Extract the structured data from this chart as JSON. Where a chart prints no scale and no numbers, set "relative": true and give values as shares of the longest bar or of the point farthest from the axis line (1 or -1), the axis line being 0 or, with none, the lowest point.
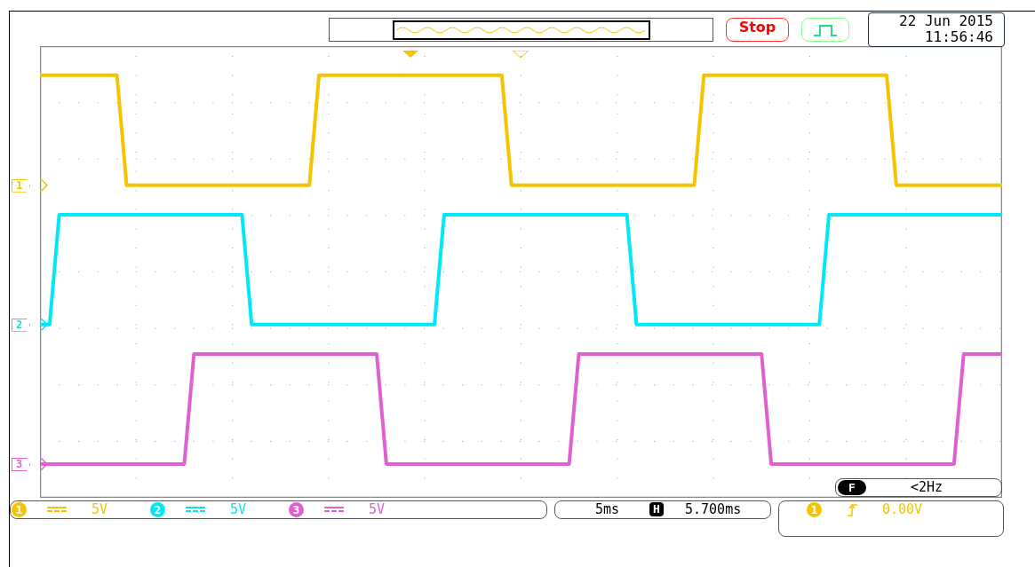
{
  "chart_data": {
    "type": "line",
    "relative": true,
    "grid": true,
    "legend": "bottom",
    "marker": "none",
    "line_style": "solid",
    "categories": [
      null,
      null,
      null,
      null,
      null,
      null,
      null,
      null,
      null,
      null,
      null,
      null,
      null,
      null,
      null,
      null,
      null,
      null,
      null,
      null,
      null,
      null,
      null,
      null,
      null,
      null,
      null,
      null,
      null,
      null,
      null,
      null,
      null,
      null,
      null,
      null,
      null,
      null,
      null,
      null,
      null,
      null,
      null,
      null,
      null,
      null,
      null,
      null,
      null,
      null,
      null,
      null,
      null,
      null,
      null,
      null,
      null,
      null,
      null,
      null,
      null,
      null,
      null,
      null,
      null,
      null,
      null,
      null,
      null,
      null,
      null,
      null,
      null,
      null,
      null,
      null,
      null,
      null,
      null,
      null,
      null,
      null,
      null,
      null,
      null,
      null,
      null,
      null,
      null,
      null,
      null,
      null,
      null,
      null,
      null,
      null,
      null,
      null,
      null,
      null,
      null
    ],
    "series": [
      {
        "name": "1",
        "color": "#f5c400",
        "values": [
          1,
          1,
          1,
          1,
          1,
          1,
          1,
          1,
          1,
          0.74,
          0.74,
          0.74,
          0.74,
          0.74,
          0.74,
          0.74,
          0.74,
          0.74,
          0.74,
          0.74,
          0.74,
          0.74,
          0.74,
          0.74,
          0.74,
          0.74,
          0.74,
          0.74,
          0.74,
          1,
          1,
          1,
          1,
          1,
          1,
          1,
          1,
          1,
          1,
          1,
          1,
          1,
          1,
          1,
          1,
          1,
          1,
          1,
          1,
          0.74,
          0.74,
          0.74,
          0.74,
          0.74,
          0.74,
          0.74,
          0.74,
          0.74,
          0.74,
          0.74,
          0.74,
          0.74,
          0.74,
          0.74,
          0.74,
          0.74,
          0.74,
          0.74,
          0.74,
          1,
          1,
          1,
          1,
          1,
          1,
          1,
          1,
          1,
          1,
          1,
          1,
          1,
          1,
          1,
          1,
          1,
          1,
          1,
          1,
          0.74,
          0.74,
          0.74,
          0.74,
          0.74,
          0.74,
          0.74,
          0.74,
          0.74,
          0.74,
          0.74,
          0.74
        ]
      },
      {
        "name": "2",
        "color": "#00e8f8",
        "values": [
          0.41,
          0.41,
          0.67,
          0.67,
          0.67,
          0.67,
          0.67,
          0.67,
          0.67,
          0.67,
          0.67,
          0.67,
          0.67,
          0.67,
          0.67,
          0.67,
          0.67,
          0.67,
          0.67,
          0.67,
          0.67,
          0.67,
          0.41,
          0.41,
          0.41,
          0.41,
          0.41,
          0.41,
          0.41,
          0.41,
          0.41,
          0.41,
          0.41,
          0.41,
          0.41,
          0.41,
          0.41,
          0.41,
          0.41,
          0.41,
          0.41,
          0.41,
          0.67,
          0.67,
          0.67,
          0.67,
          0.67,
          0.67,
          0.67,
          0.67,
          0.67,
          0.67,
          0.67,
          0.67,
          0.67,
          0.67,
          0.67,
          0.67,
          0.67,
          0.67,
          0.67,
          0.67,
          0.41,
          0.41,
          0.41,
          0.41,
          0.41,
          0.41,
          0.41,
          0.41,
          0.41,
          0.41,
          0.41,
          0.41,
          0.41,
          0.41,
          0.41,
          0.41,
          0.41,
          0.41,
          0.41,
          0.41,
          0.67,
          0.67,
          0.67,
          0.67,
          0.67,
          0.67,
          0.67,
          0.67,
          0.67,
          0.67,
          0.67,
          0.67,
          0.67,
          0.67,
          0.67,
          0.67,
          0.67,
          0.67,
          0.67
        ]
      },
      {
        "name": "3",
        "color": "#e060d0",
        "values": [
          0.08,
          0.08,
          0.08,
          0.08,
          0.08,
          0.08,
          0.08,
          0.08,
          0.08,
          0.08,
          0.08,
          0.08,
          0.08,
          0.08,
          0.08,
          0.08,
          0.34,
          0.34,
          0.34,
          0.34,
          0.34,
          0.34,
          0.34,
          0.34,
          0.34,
          0.34,
          0.34,
          0.34,
          0.34,
          0.34,
          0.34,
          0.34,
          0.34,
          0.34,
          0.34,
          0.34,
          0.08,
          0.08,
          0.08,
          0.08,
          0.08,
          0.08,
          0.08,
          0.08,
          0.08,
          0.08,
          0.08,
          0.08,
          0.08,
          0.08,
          0.08,
          0.08,
          0.08,
          0.08,
          0.08,
          0.08,
          0.34,
          0.34,
          0.34,
          0.34,
          0.34,
          0.34,
          0.34,
          0.34,
          0.34,
          0.34,
          0.34,
          0.34,
          0.34,
          0.34,
          0.34,
          0.34,
          0.34,
          0.34,
          0.34,
          0.34,
          0.08,
          0.08,
          0.08,
          0.08,
          0.08,
          0.08,
          0.08,
          0.08,
          0.08,
          0.08,
          0.08,
          0.08,
          0.08,
          0.08,
          0.08,
          0.08,
          0.08,
          0.08,
          0.08,
          0.08,
          0.34,
          0.34,
          0.34,
          0.34,
          0.34
        ]
      }
    ],
    "annotations": [
      "Stop",
      "22 Jun 2015",
      "11:56:46",
      "F",
      "<2Hz",
      "5V",
      "5V",
      "5V",
      "5ms",
      "H",
      "5.700ms",
      "0.00V"
    ]
  }
}
